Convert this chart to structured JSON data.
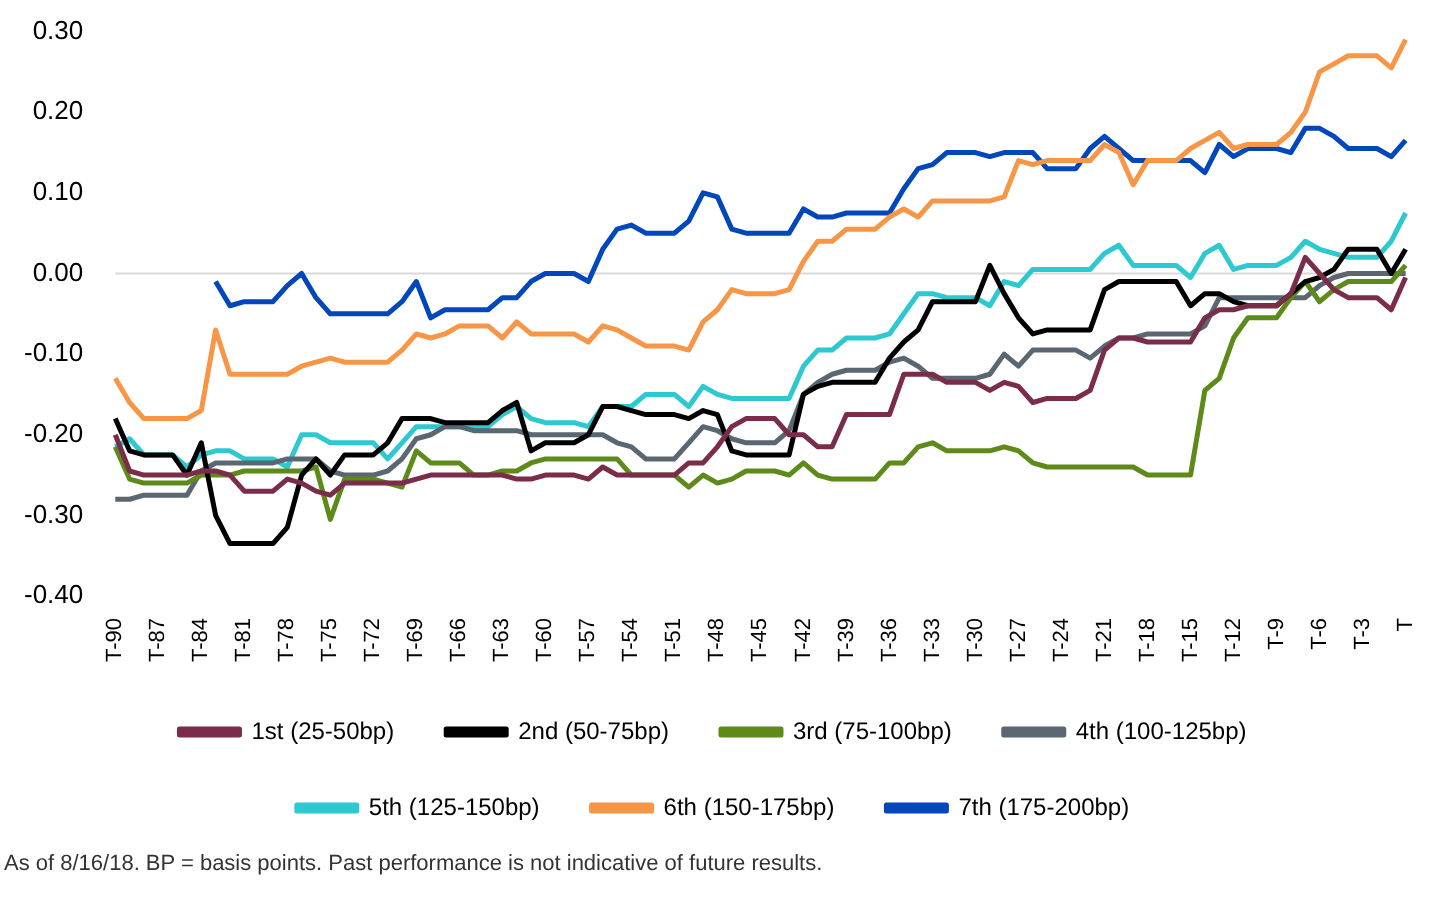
{
  "chart_data": {
    "type": "line",
    "categories": [
      "T-90",
      null,
      null,
      "T-87",
      null,
      null,
      "T-84",
      null,
      null,
      "T-81",
      null,
      null,
      "T-78",
      null,
      null,
      "T-75",
      null,
      null,
      "T-72",
      null,
      null,
      "T-69",
      null,
      null,
      "T-66",
      null,
      null,
      "T-63",
      null,
      null,
      "T-60",
      null,
      null,
      "T-57",
      null,
      null,
      "T-54",
      null,
      null,
      "T-51",
      null,
      null,
      "T-48",
      null,
      null,
      "T-45",
      null,
      null,
      "T-42",
      null,
      null,
      "T-39",
      null,
      null,
      "T-36",
      null,
      null,
      "T-33",
      null,
      null,
      "T-30",
      null,
      null,
      "T-27",
      null,
      null,
      "T-24",
      null,
      null,
      "T-21",
      null,
      null,
      "T-18",
      null,
      null,
      "T-15",
      null,
      null,
      "T-12",
      null,
      null,
      "T-9",
      null,
      null,
      "T-6",
      null,
      null,
      "T-3",
      null,
      null,
      "T"
    ],
    "series": [
      {
        "name": "1st (25-50bp)",
        "color": "#7b2c4b",
        "values": [
          -0.2,
          -0.245,
          -0.25,
          -0.25,
          -0.25,
          -0.25,
          -0.245,
          -0.245,
          -0.25,
          -0.27,
          -0.27,
          -0.27,
          -0.255,
          -0.26,
          -0.27,
          -0.275,
          -0.26,
          -0.26,
          -0.26,
          -0.26,
          -0.26,
          -0.255,
          -0.25,
          -0.25,
          -0.25,
          -0.25,
          -0.25,
          -0.25,
          -0.255,
          -0.255,
          -0.25,
          -0.25,
          -0.25,
          -0.255,
          -0.24,
          -0.25,
          -0.25,
          -0.25,
          -0.25,
          -0.25,
          -0.235,
          -0.235,
          -0.215,
          -0.19,
          -0.18,
          -0.18,
          -0.18,
          -0.2,
          -0.2,
          -0.215,
          -0.215,
          -0.175,
          -0.175,
          -0.175,
          -0.175,
          -0.125,
          -0.125,
          -0.125,
          -0.135,
          -0.135,
          -0.135,
          -0.145,
          -0.135,
          -0.14,
          -0.16,
          -0.155,
          -0.155,
          -0.155,
          -0.145,
          -0.095,
          -0.08,
          -0.08,
          -0.085,
          -0.085,
          -0.085,
          -0.085,
          -0.055,
          -0.045,
          -0.045,
          -0.04,
          -0.04,
          -0.04,
          -0.025,
          0.02,
          0,
          -0.02,
          -0.03,
          -0.03,
          -0.03,
          -0.045,
          -0.005
        ]
      },
      {
        "name": "2nd (50-75bp)",
        "color": "#000000",
        "values": [
          -0.18,
          -0.22,
          -0.225,
          -0.225,
          -0.225,
          -0.25,
          -0.21,
          -0.3,
          -0.335,
          -0.335,
          -0.335,
          -0.335,
          -0.315,
          -0.25,
          -0.23,
          -0.25,
          -0.225,
          -0.225,
          -0.225,
          -0.21,
          -0.18,
          -0.18,
          -0.18,
          -0.185,
          -0.185,
          -0.185,
          -0.185,
          -0.17,
          -0.16,
          -0.22,
          -0.21,
          -0.21,
          -0.21,
          -0.2,
          -0.165,
          -0.165,
          -0.17,
          -0.175,
          -0.175,
          -0.175,
          -0.18,
          -0.17,
          -0.175,
          -0.22,
          -0.225,
          -0.225,
          -0.225,
          -0.225,
          -0.15,
          -0.14,
          -0.135,
          -0.135,
          -0.135,
          -0.135,
          -0.105,
          -0.085,
          -0.07,
          -0.035,
          -0.035,
          -0.035,
          -0.035,
          0.01,
          -0.025,
          -0.055,
          -0.075,
          -0.07,
          -0.07,
          -0.07,
          -0.07,
          -0.02,
          -0.01,
          -0.01,
          -0.01,
          -0.01,
          -0.01,
          -0.04,
          -0.025,
          -0.025,
          -0.035,
          -0.04,
          -0.04,
          -0.04,
          -0.025,
          -0.01,
          -0.005,
          0.005,
          0.03,
          0.03,
          0.03,
          0,
          0.03
        ]
      },
      {
        "name": "3rd (75-100bp)",
        "color": "#5e8a1a",
        "values": [
          -0.215,
          -0.255,
          -0.26,
          -0.26,
          -0.26,
          -0.26,
          -0.25,
          -0.25,
          -0.25,
          -0.245,
          -0.245,
          -0.245,
          -0.245,
          -0.245,
          -0.24,
          -0.305,
          -0.255,
          -0.255,
          -0.255,
          -0.26,
          -0.265,
          -0.22,
          -0.235,
          -0.235,
          -0.235,
          -0.25,
          -0.25,
          -0.245,
          -0.245,
          -0.235,
          -0.23,
          -0.23,
          -0.23,
          -0.23,
          -0.23,
          -0.23,
          -0.25,
          -0.25,
          -0.25,
          -0.25,
          -0.265,
          -0.25,
          -0.26,
          -0.255,
          -0.245,
          -0.245,
          -0.245,
          -0.25,
          -0.235,
          -0.25,
          -0.255,
          -0.255,
          -0.255,
          -0.255,
          -0.235,
          -0.235,
          -0.215,
          -0.21,
          -0.22,
          -0.22,
          -0.22,
          -0.22,
          -0.215,
          -0.22,
          -0.235,
          -0.24,
          -0.24,
          -0.24,
          -0.24,
          -0.24,
          -0.24,
          -0.24,
          -0.25,
          -0.25,
          -0.25,
          -0.25,
          -0.145,
          -0.13,
          -0.08,
          -0.055,
          -0.055,
          -0.055,
          -0.03,
          -0.01,
          -0.035,
          -0.02,
          -0.01,
          -0.01,
          -0.01,
          -0.01,
          0.01
        ]
      },
      {
        "name": "4th (100-125bp)",
        "color": "#5a6670",
        "values": [
          -0.28,
          -0.28,
          -0.275,
          -0.275,
          -0.275,
          -0.275,
          -0.245,
          -0.235,
          -0.235,
          -0.235,
          -0.235,
          -0.235,
          -0.23,
          -0.23,
          -0.23,
          -0.245,
          -0.25,
          -0.25,
          -0.25,
          -0.245,
          -0.23,
          -0.205,
          -0.2,
          -0.19,
          -0.19,
          -0.195,
          -0.195,
          -0.195,
          -0.195,
          -0.2,
          -0.2,
          -0.2,
          -0.2,
          -0.2,
          -0.2,
          -0.21,
          -0.215,
          -0.23,
          -0.23,
          -0.23,
          -0.21,
          -0.19,
          -0.195,
          -0.205,
          -0.21,
          -0.21,
          -0.21,
          -0.195,
          -0.15,
          -0.135,
          -0.125,
          -0.12,
          -0.12,
          -0.12,
          -0.11,
          -0.105,
          -0.115,
          -0.13,
          -0.13,
          -0.13,
          -0.13,
          -0.125,
          -0.1,
          -0.115,
          -0.095,
          -0.095,
          -0.095,
          -0.095,
          -0.105,
          -0.09,
          -0.08,
          -0.08,
          -0.075,
          -0.075,
          -0.075,
          -0.075,
          -0.065,
          -0.03,
          -0.03,
          -0.03,
          -0.03,
          -0.03,
          -0.03,
          -0.03,
          -0.015,
          -0.005,
          0,
          0,
          0,
          0,
          0
        ]
      },
      {
        "name": "5th (125-150bp)",
        "color": "#2ec8d0",
        "values": [
          -0.215,
          -0.205,
          -0.225,
          -0.225,
          -0.225,
          -0.24,
          -0.225,
          -0.22,
          -0.22,
          -0.23,
          -0.23,
          -0.23,
          -0.24,
          -0.2,
          -0.2,
          -0.21,
          -0.21,
          -0.21,
          -0.21,
          -0.23,
          -0.21,
          -0.19,
          -0.19,
          -0.19,
          -0.19,
          -0.19,
          -0.19,
          -0.175,
          -0.165,
          -0.18,
          -0.185,
          -0.185,
          -0.185,
          -0.19,
          -0.165,
          -0.165,
          -0.165,
          -0.15,
          -0.15,
          -0.15,
          -0.165,
          -0.14,
          -0.15,
          -0.155,
          -0.155,
          -0.155,
          -0.155,
          -0.155,
          -0.115,
          -0.095,
          -0.095,
          -0.08,
          -0.08,
          -0.08,
          -0.075,
          -0.05,
          -0.025,
          -0.025,
          -0.03,
          -0.03,
          -0.03,
          -0.04,
          -0.01,
          -0.015,
          0.005,
          0.005,
          0.005,
          0.005,
          0.005,
          0.025,
          0.035,
          0.01,
          0.01,
          0.01,
          0.01,
          -0.005,
          0.025,
          0.035,
          0.005,
          0.01,
          0.01,
          0.01,
          0.02,
          0.04,
          0.03,
          0.025,
          0.02,
          0.02,
          0.02,
          0.04,
          0.075
        ]
      },
      {
        "name": "6th (150-175bp)",
        "color": "#f79646",
        "values": [
          -0.13,
          -0.16,
          -0.18,
          -0.18,
          -0.18,
          -0.18,
          -0.17,
          -0.07,
          -0.125,
          -0.125,
          -0.125,
          -0.125,
          -0.125,
          -0.115,
          -0.11,
          -0.105,
          -0.11,
          -0.11,
          -0.11,
          -0.11,
          -0.095,
          -0.075,
          -0.08,
          -0.075,
          -0.065,
          -0.065,
          -0.065,
          -0.08,
          -0.06,
          -0.075,
          -0.075,
          -0.075,
          -0.075,
          -0.085,
          -0.065,
          -0.07,
          -0.08,
          -0.09,
          -0.09,
          -0.09,
          -0.095,
          -0.06,
          -0.045,
          -0.02,
          -0.025,
          -0.025,
          -0.025,
          -0.02,
          0.015,
          0.04,
          0.04,
          0.055,
          0.055,
          0.055,
          0.07,
          0.08,
          0.07,
          0.09,
          0.09,
          0.09,
          0.09,
          0.09,
          0.095,
          0.14,
          0.135,
          0.14,
          0.14,
          0.14,
          0.14,
          0.16,
          0.15,
          0.11,
          0.14,
          0.14,
          0.14,
          0.155,
          0.165,
          0.175,
          0.155,
          0.16,
          0.16,
          0.16,
          0.175,
          0.2,
          0.25,
          0.26,
          0.27,
          0.27,
          0.27,
          0.255,
          0.29
        ]
      },
      {
        "name": "7th (175-200bp)",
        "color": "#0047bb",
        "values": [
          null,
          null,
          null,
          null,
          null,
          null,
          null,
          -0.01,
          -0.04,
          -0.035,
          -0.035,
          -0.035,
          -0.015,
          0,
          -0.03,
          -0.05,
          -0.05,
          -0.05,
          -0.05,
          -0.05,
          -0.035,
          -0.01,
          -0.055,
          -0.045,
          -0.045,
          -0.045,
          -0.045,
          -0.03,
          -0.03,
          -0.01,
          0,
          0,
          0,
          -0.01,
          0.03,
          0.055,
          0.06,
          0.05,
          0.05,
          0.05,
          0.065,
          0.1,
          0.095,
          0.055,
          0.05,
          0.05,
          0.05,
          0.05,
          0.08,
          0.07,
          0.07,
          0.075,
          0.075,
          0.075,
          0.075,
          0.105,
          0.13,
          0.135,
          0.15,
          0.15,
          0.15,
          0.145,
          0.15,
          0.15,
          0.15,
          0.13,
          0.13,
          0.13,
          0.155,
          0.17,
          0.155,
          0.14,
          0.14,
          0.14,
          0.14,
          0.14,
          0.125,
          0.16,
          0.145,
          0.155,
          0.155,
          0.155,
          0.15,
          0.18,
          0.18,
          0.17,
          0.155,
          0.155,
          0.155,
          0.145,
          0.165
        ]
      }
    ],
    "ylim": [
      -0.4,
      0.3
    ],
    "yticks": [
      {
        "value": -0.4,
        "label": "-0.40"
      },
      {
        "value": -0.3,
        "label": "-0.30"
      },
      {
        "value": -0.2,
        "label": "-0.20"
      },
      {
        "value": -0.1,
        "label": "-0.10"
      },
      {
        "value": 0,
        "label": "0.00"
      },
      {
        "value": 0.1,
        "label": "0.10"
      },
      {
        "value": 0.2,
        "label": "0.20"
      },
      {
        "value": 0.3,
        "label": "0.30"
      }
    ],
    "ref_lines": [
      {
        "axis": "y",
        "value": 0,
        "color": "#d9d9d9"
      }
    ],
    "grid": false,
    "legend": "bottom",
    "line_style": "solid",
    "marker": "none",
    "annotations": [
      "As of 8/16/18. BP = basis points. Past performance is not indicative of future results."
    ]
  }
}
